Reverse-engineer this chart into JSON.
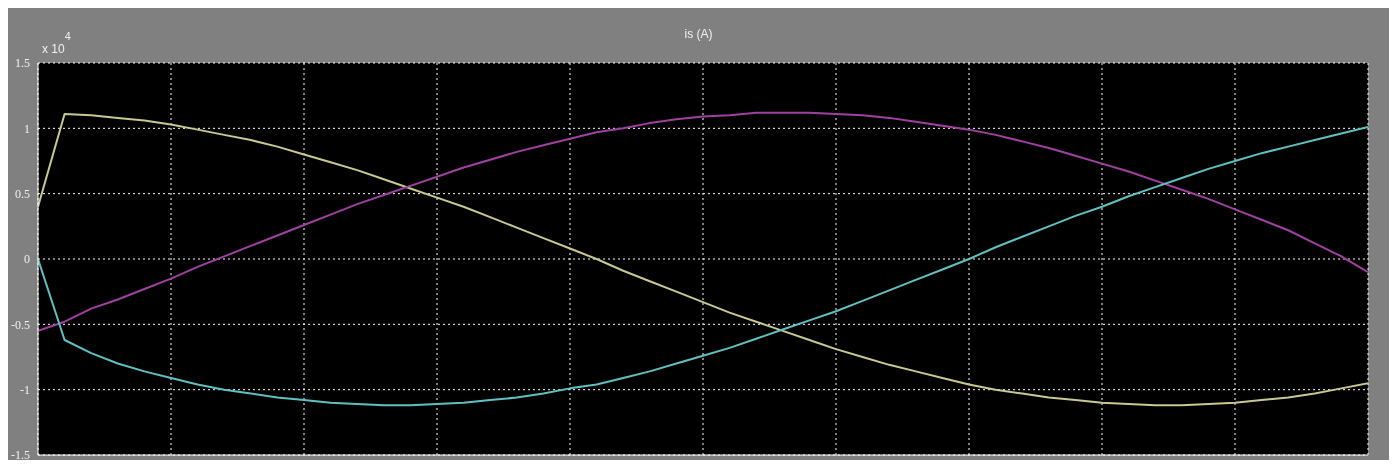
{
  "chart_data": {
    "type": "line",
    "title": "is (A)",
    "annotations": [
      "x 10$^{4}$"
    ],
    "categories": [
      null,
      null,
      null,
      null,
      null,
      null,
      null,
      null,
      null,
      null,
      null,
      null,
      null,
      null,
      null,
      null,
      null,
      null,
      null,
      null,
      null,
      null,
      null,
      null,
      null,
      null,
      null,
      null,
      null,
      null,
      null,
      null,
      null,
      null,
      null,
      null,
      null,
      null,
      null,
      null,
      null,
      null,
      null,
      null,
      null,
      null,
      null,
      null,
      null,
      null,
      null
    ],
    "series": [
      {
        "color": "#c8c890",
        "values": [
          0.4,
          1.11,
          1.1,
          1.08,
          1.06,
          1.03,
          0.99,
          0.95,
          0.91,
          0.86,
          0.8,
          0.74,
          0.68,
          0.61,
          0.54,
          0.47,
          0.4,
          0.32,
          0.24,
          0.16,
          0.08,
          0,
          -0.09,
          -0.17,
          -0.25,
          -0.33,
          -0.41,
          -0.48,
          -0.55,
          -0.62,
          -0.69,
          -0.75,
          -0.81,
          -0.86,
          -0.91,
          -0.96,
          -1,
          -1.03,
          -1.06,
          -1.08,
          -1.1,
          -1.11,
          -1.12,
          -1.12,
          -1.11,
          -1.1,
          -1.08,
          -1.06,
          -1.03,
          -0.99,
          -0.95
        ]
      },
      {
        "color": "#a040a0",
        "values": [
          -0.55,
          -0.48,
          -0.38,
          -0.31,
          -0.23,
          -0.15,
          -0.06,
          0.02,
          0.1,
          0.18,
          0.26,
          0.34,
          0.42,
          0.49,
          0.56,
          0.63,
          0.7,
          0.76,
          0.82,
          0.87,
          0.92,
          0.97,
          1,
          1.04,
          1.07,
          1.09,
          1.1,
          1.12,
          1.12,
          1.12,
          1.11,
          1.1,
          1.08,
          1.05,
          1.02,
          0.99,
          0.95,
          0.9,
          0.85,
          0.79,
          0.73,
          0.67,
          0.6,
          0.53,
          0.46,
          0.38,
          0.3,
          0.22,
          0.12,
          0.02,
          -0.1
        ]
      },
      {
        "color": "#60c0c0",
        "values": [
          0,
          -0.62,
          -0.72,
          -0.8,
          -0.86,
          -0.91,
          -0.96,
          -1,
          -1.03,
          -1.06,
          -1.08,
          -1.1,
          -1.11,
          -1.12,
          -1.12,
          -1.11,
          -1.1,
          -1.08,
          -1.06,
          -1.03,
          -0.99,
          -0.96,
          -0.91,
          -0.86,
          -0.8,
          -0.74,
          -0.68,
          -0.61,
          -0.54,
          -0.47,
          -0.4,
          -0.32,
          -0.24,
          -0.16,
          -0.08,
          0,
          0.09,
          0.17,
          0.25,
          0.33,
          0.4,
          0.48,
          0.55,
          0.62,
          0.69,
          0.75,
          0.81,
          0.86,
          0.91,
          0.96,
          1.01
        ]
      }
    ],
    "ylim": [
      -1.5,
      1.5
    ],
    "yticks": [
      -1.5,
      -1,
      -0.5,
      0,
      0.5,
      1,
      1.5
    ],
    "grid": true,
    "legend": false,
    "marker": "none",
    "line_style": "solid"
  }
}
